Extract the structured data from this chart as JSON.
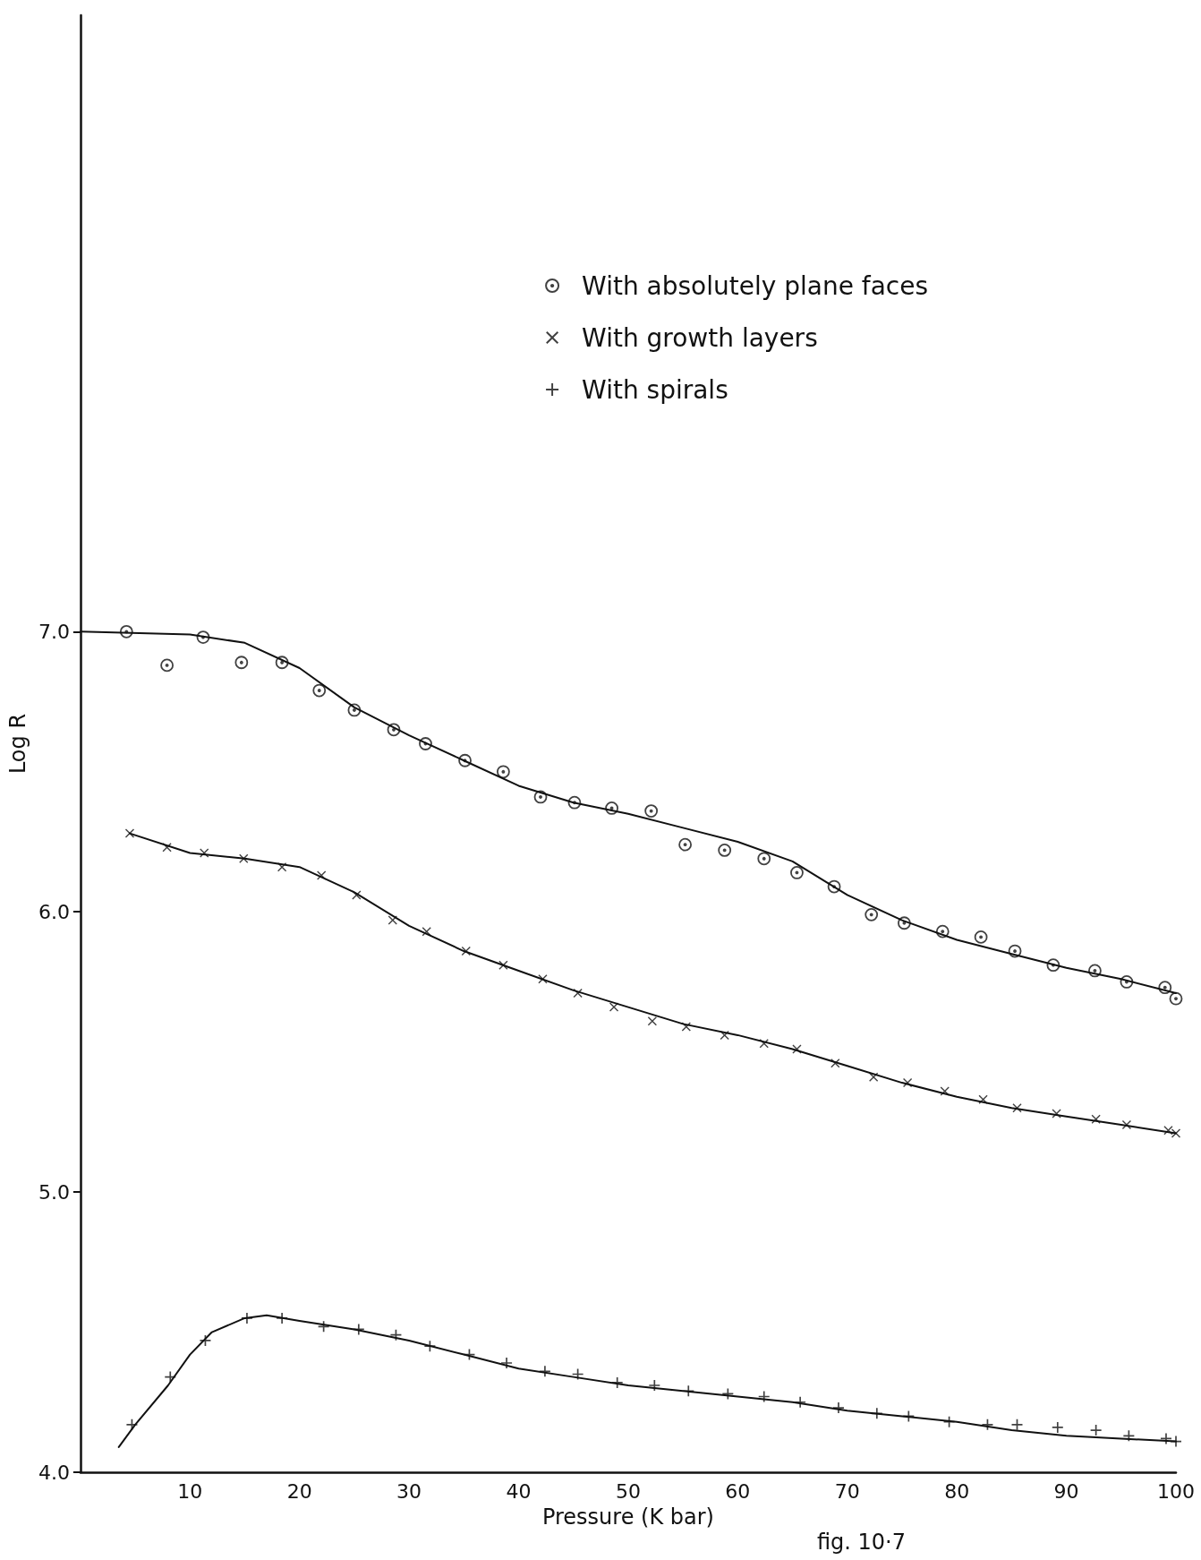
{
  "chart_data": {
    "type": "scatter",
    "xlabel": "Pressure (K bar)",
    "ylabel": "Log R",
    "xlim": [
      0,
      100
    ],
    "xticks": [
      10,
      20,
      30,
      40,
      50,
      60,
      70,
      80,
      90,
      100
    ],
    "ylim": [
      4,
      9.2
    ],
    "yticks": [
      {
        "value": 4,
        "label": "4.0"
      },
      {
        "value": 5,
        "label": "5.0"
      },
      {
        "value": 6,
        "label": "6.0"
      },
      {
        "value": 7,
        "label": "7.0"
      }
    ],
    "grid": false,
    "legend": "top right",
    "annotations": [
      "fig. 10·7"
    ],
    "series": [
      {
        "name": "With absolutely plane faces",
        "color": "#111111",
        "marker": "circle",
        "x": [
          4.2,
          7.9,
          11.2,
          14.7,
          18.4,
          21.8,
          25.0,
          28.6,
          31.5,
          35.1,
          38.6,
          42.0,
          45.1,
          48.5,
          52.1,
          55.2,
          58.8,
          62.4,
          65.4,
          68.8,
          72.2,
          75.2,
          78.7,
          82.2,
          85.3,
          88.8,
          92.6,
          95.5,
          99.0,
          100
        ],
        "values": [
          7.0,
          6.88,
          6.98,
          6.89,
          6.89,
          6.79,
          6.72,
          6.65,
          6.6,
          6.54,
          6.5,
          6.41,
          6.39,
          6.37,
          6.36,
          6.24,
          6.22,
          6.19,
          6.14,
          6.09,
          5.99,
          5.96,
          5.93,
          5.91,
          5.86,
          5.81,
          5.79,
          5.75,
          5.73,
          5.69
        ]
      },
      {
        "name": "With growth layers",
        "color": "#111111",
        "marker": "cross",
        "x": [
          4.5,
          7.9,
          11.3,
          14.9,
          18.4,
          22.0,
          25.2,
          28.5,
          31.6,
          35.2,
          38.6,
          42.2,
          45.4,
          48.7,
          52.2,
          55.3,
          58.8,
          62.4,
          65.4,
          68.9,
          72.4,
          75.5,
          78.9,
          82.4,
          85.5,
          89.1,
          92.7,
          95.5,
          99.3,
          100
        ],
        "values": [
          6.28,
          6.23,
          6.21,
          6.19,
          6.16,
          6.13,
          6.06,
          5.97,
          5.93,
          5.86,
          5.81,
          5.76,
          5.71,
          5.66,
          5.61,
          5.59,
          5.56,
          5.53,
          5.51,
          5.46,
          5.41,
          5.39,
          5.36,
          5.33,
          5.3,
          5.28,
          5.26,
          5.24,
          5.22,
          5.21
        ]
      },
      {
        "name": "With spirals",
        "color": "#111111",
        "marker": "cross",
        "x": [
          4.7,
          8.2,
          11.4,
          15.2,
          18.4,
          22.2,
          25.4,
          28.8,
          31.9,
          35.5,
          38.9,
          42.4,
          45.4,
          49.0,
          52.4,
          55.5,
          59.1,
          62.4,
          65.7,
          69.2,
          72.7,
          75.6,
          79.3,
          82.8,
          85.5,
          89.2,
          92.7,
          95.7,
          99.1,
          100
        ],
        "values": [
          4.17,
          4.34,
          4.47,
          4.55,
          4.55,
          4.52,
          4.51,
          4.49,
          4.45,
          4.42,
          4.39,
          4.36,
          4.35,
          4.32,
          4.31,
          4.29,
          4.28,
          4.27,
          4.25,
          4.23,
          4.21,
          4.2,
          4.18,
          4.17,
          4.17,
          4.16,
          4.15,
          4.13,
          4.12,
          4.11
        ]
      },
      {
        "type": "line",
        "color": "#111111",
        "marker": "none",
        "line_style": "solid",
        "x": [
          0,
          10,
          15,
          20,
          25,
          30,
          35,
          40,
          45,
          50,
          55,
          60,
          65,
          70,
          75,
          80,
          85,
          90,
          95,
          100
        ],
        "values": [
          7.0,
          6.99,
          6.96,
          6.87,
          6.73,
          6.63,
          6.54,
          6.45,
          6.39,
          6.35,
          6.3,
          6.25,
          6.18,
          6.06,
          5.97,
          5.9,
          5.85,
          5.8,
          5.76,
          5.71
        ]
      },
      {
        "type": "line",
        "color": "#111111",
        "marker": "none",
        "line_style": "solid",
        "x": [
          4.5,
          10,
          15,
          20,
          25,
          30,
          35,
          40,
          45,
          50,
          55,
          60,
          65,
          70,
          75,
          80,
          85,
          90,
          95,
          100
        ],
        "values": [
          6.28,
          6.21,
          6.19,
          6.16,
          6.07,
          5.95,
          5.86,
          5.79,
          5.72,
          5.66,
          5.6,
          5.56,
          5.51,
          5.45,
          5.39,
          5.34,
          5.3,
          5.27,
          5.24,
          5.21
        ]
      },
      {
        "type": "line",
        "color": "#111111",
        "marker": "none",
        "line_style": "solid",
        "x": [
          3.5,
          5,
          8,
          10,
          12,
          15,
          17,
          20,
          25,
          30,
          35,
          40,
          45,
          50,
          55,
          60,
          65,
          70,
          75,
          80,
          85,
          90,
          95,
          100
        ],
        "values": [
          4.09,
          4.17,
          4.31,
          4.42,
          4.5,
          4.55,
          4.56,
          4.54,
          4.51,
          4.47,
          4.42,
          4.37,
          4.34,
          4.31,
          4.29,
          4.27,
          4.25,
          4.22,
          4.2,
          4.18,
          4.15,
          4.13,
          4.12,
          4.11
        ]
      }
    ]
  }
}
